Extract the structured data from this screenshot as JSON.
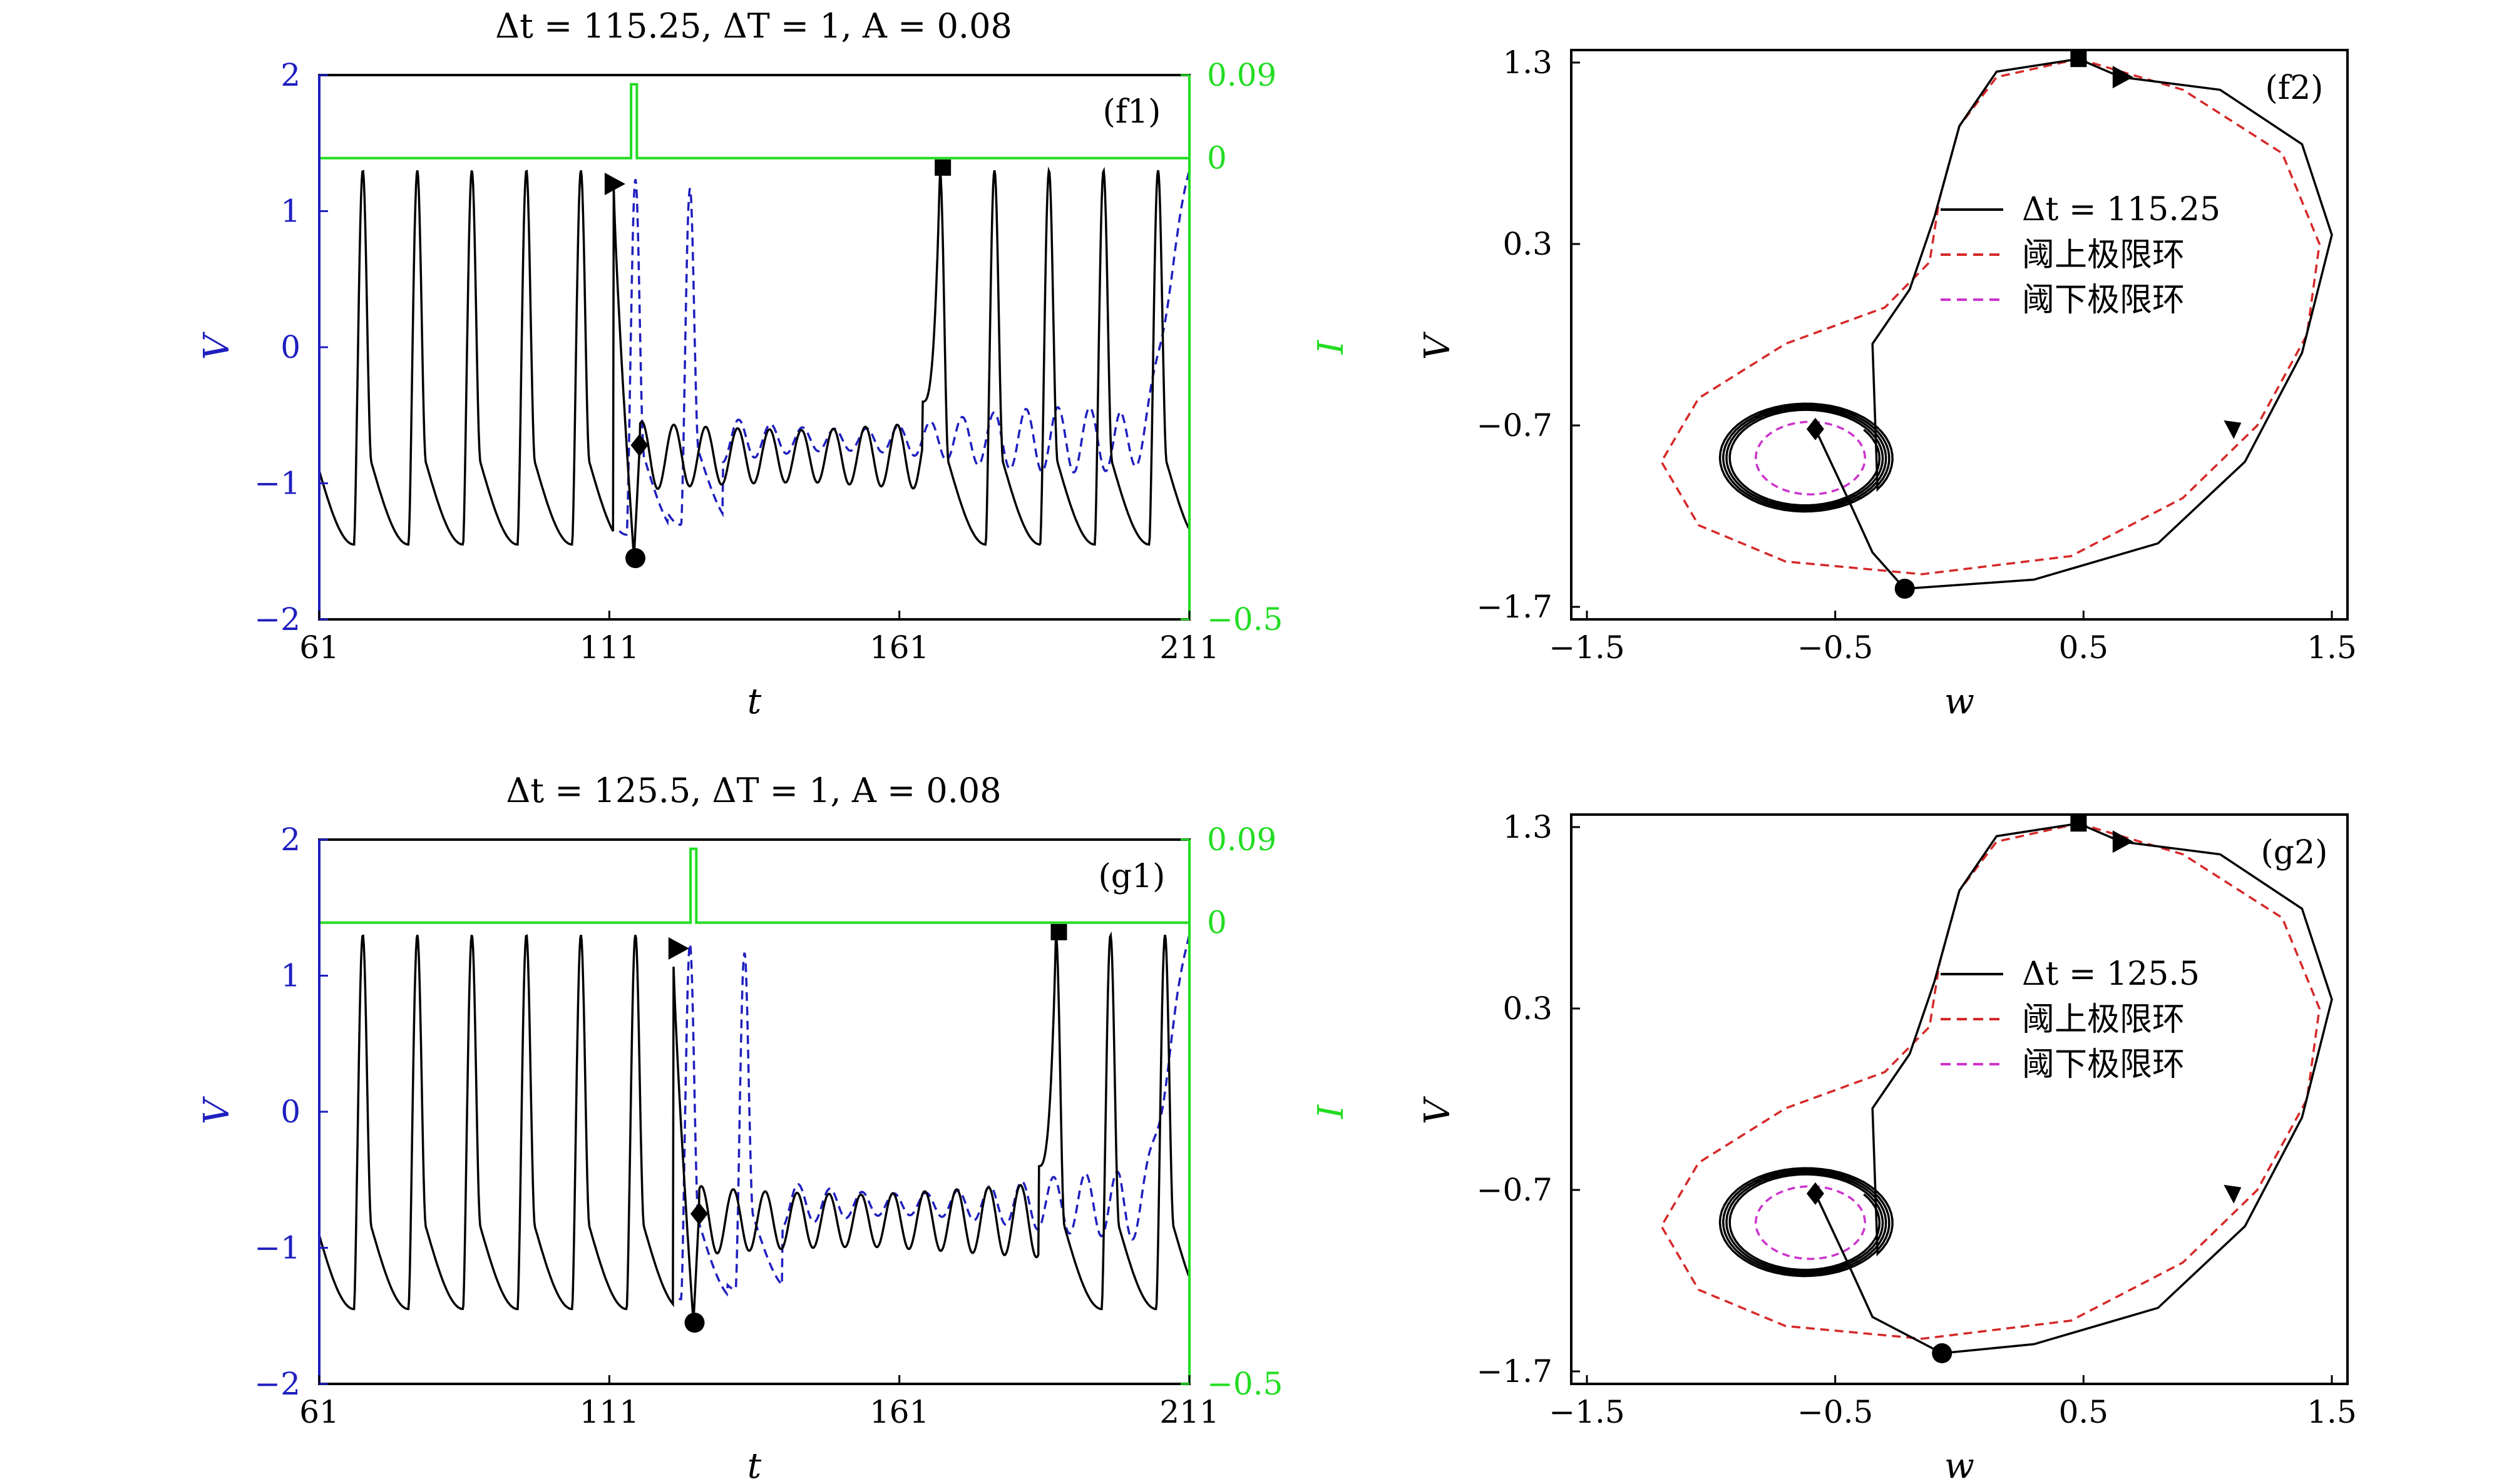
{
  "colors": {
    "trajectory": "#000000",
    "dashed_reference": "#1f1fbf",
    "stimulus": "#22dd22",
    "upper_limit_cycle": "#d62828",
    "lower_limit_cycle": "#cc33cc",
    "left_axis": "#1f1fbf",
    "right_axis": "#22dd22"
  },
  "chart_data": [
    {
      "id": "f1",
      "type": "line",
      "title": "Δt = 115.25,  ΔT = 1,  A = 0.08",
      "panel_tag": "(f1)",
      "xlabel": "t",
      "ylabel": "V",
      "y2label": "I",
      "xlim": [
        61,
        211
      ],
      "ylim": [
        -2,
        2
      ],
      "y2lim": [
        -0.5,
        0.09
      ],
      "x_ticks": [
        "61",
        "111",
        "161",
        "211"
      ],
      "y_ticks": [
        "2",
        "1",
        "0",
        "−1",
        "−2"
      ],
      "y2_ticks": [
        "0.09",
        "0",
        "−0.5"
      ],
      "grid": false,
      "period": 9.4,
      "pulse_time": 115.25,
      "pulse_width": 1,
      "pulse_amplitude": 0.08,
      "resume_time": 168,
      "markers": [
        {
          "shape": "triangle",
          "x": 111.6,
          "y": 1.2
        },
        {
          "shape": "diamond",
          "x": 116.2,
          "y": -0.72
        },
        {
          "shape": "circle",
          "x": 115.5,
          "y": -1.55
        },
        {
          "shape": "square",
          "x": 168.5,
          "y": 1.32
        }
      ]
    },
    {
      "id": "f2",
      "type": "line",
      "panel_tag": "(f2)",
      "xlabel": "w",
      "ylabel": "V",
      "xlim": [
        -1.5,
        1.5
      ],
      "ylim": [
        -1.7,
        1.3
      ],
      "x_ticks": [
        "−1.5",
        "−0.5",
        "0.5",
        "1.5"
      ],
      "y_ticks": [
        "1.3",
        "0.3",
        "−0.7",
        "−1.7"
      ],
      "grid": false,
      "legend": {
        "placement": "center",
        "entries": [
          {
            "label": "Δt = 115.25",
            "style": "solid"
          },
          {
            "label": "阈上极限环",
            "style": "dashed"
          },
          {
            "label": "阈下极限环",
            "style": "dashed"
          }
        ]
      },
      "markers": [
        {
          "shape": "square",
          "x": 0.48,
          "y": 1.32
        },
        {
          "shape": "triangle",
          "x": 0.65,
          "y": 1.22
        },
        {
          "shape": "triangle-down",
          "x": 1.1,
          "y": -0.72
        },
        {
          "shape": "circle",
          "x": -0.22,
          "y": -1.6
        },
        {
          "shape": "diamond",
          "x": -0.58,
          "y": -0.72
        }
      ]
    },
    {
      "id": "g1",
      "type": "line",
      "title": "Δt = 125.5,  ΔT = 1,  A = 0.08",
      "panel_tag": "(g1)",
      "xlabel": "t",
      "ylabel": "V",
      "y2label": "I",
      "xlim": [
        61,
        211
      ],
      "ylim": [
        -2,
        2
      ],
      "y2lim": [
        -0.5,
        0.09
      ],
      "x_ticks": [
        "61",
        "111",
        "161",
        "211"
      ],
      "y_ticks": [
        "2",
        "1",
        "0",
        "−1",
        "−2"
      ],
      "y2_ticks": [
        "0.09",
        "0",
        "−0.5"
      ],
      "grid": false,
      "period": 9.4,
      "pulse_time": 125.5,
      "pulse_width": 1,
      "pulse_amplitude": 0.08,
      "resume_time": 188,
      "markers": [
        {
          "shape": "triangle",
          "x": 122.6,
          "y": 1.2
        },
        {
          "shape": "diamond",
          "x": 126.5,
          "y": -0.75
        },
        {
          "shape": "circle",
          "x": 125.7,
          "y": -1.55
        },
        {
          "shape": "square",
          "x": 188.5,
          "y": 1.32
        }
      ]
    },
    {
      "id": "g2",
      "type": "line",
      "panel_tag": "(g2)",
      "xlabel": "w",
      "ylabel": "V",
      "xlim": [
        -1.5,
        1.5
      ],
      "ylim": [
        -1.7,
        1.3
      ],
      "x_ticks": [
        "−1.5",
        "−0.5",
        "0.5",
        "1.5"
      ],
      "y_ticks": [
        "1.3",
        "0.3",
        "−0.7",
        "−1.7"
      ],
      "grid": false,
      "legend": {
        "placement": "center",
        "entries": [
          {
            "label": "Δt = 125.5",
            "style": "solid"
          },
          {
            "label": "阈上极限环",
            "style": "dashed"
          },
          {
            "label": "阈下极限环",
            "style": "dashed"
          }
        ]
      },
      "markers": [
        {
          "shape": "square",
          "x": 0.48,
          "y": 1.32
        },
        {
          "shape": "triangle",
          "x": 0.65,
          "y": 1.22
        },
        {
          "shape": "triangle-down",
          "x": 1.1,
          "y": -0.72
        },
        {
          "shape": "circle",
          "x": -0.07,
          "y": -1.6
        },
        {
          "shape": "diamond",
          "x": -0.58,
          "y": -0.72
        }
      ]
    }
  ]
}
